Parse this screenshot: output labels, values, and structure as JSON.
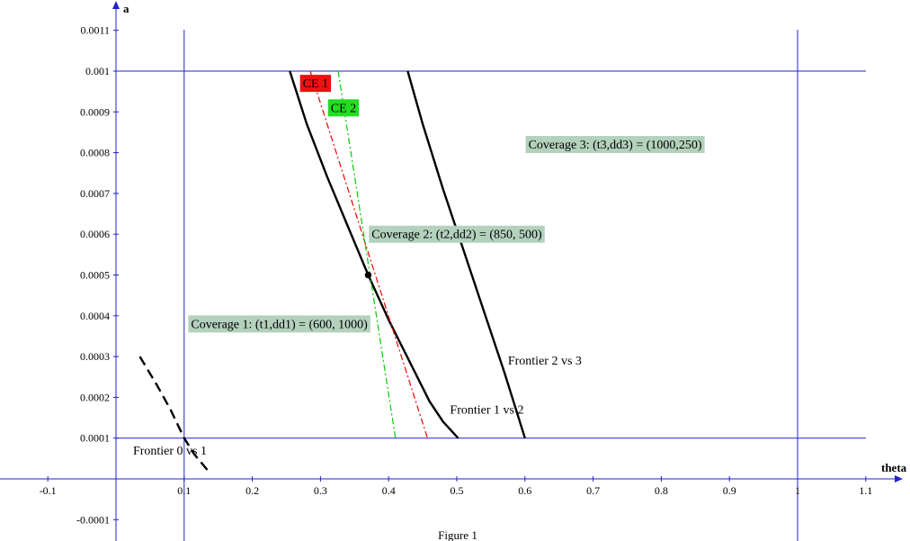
{
  "chart_data": {
    "type": "line",
    "title": "",
    "caption": "Figure 1",
    "xlabel": "theta",
    "ylabel": "a",
    "xlim": [
      -0.17,
      1.16
    ],
    "ylim": [
      -0.00015,
      0.00115
    ],
    "x_ticks": [
      {
        "value": -0.1,
        "label": "-0.1"
      },
      {
        "value": 0.1,
        "label": "0.1"
      },
      {
        "value": 0.2,
        "label": "0.2"
      },
      {
        "value": 0.3,
        "label": "0.3"
      },
      {
        "value": 0.4,
        "label": "0.4"
      },
      {
        "value": 0.5,
        "label": "0.5"
      },
      {
        "value": 0.6,
        "label": "0.6"
      },
      {
        "value": 0.7,
        "label": "0.7"
      },
      {
        "value": 0.8,
        "label": "0.8"
      },
      {
        "value": 0.9,
        "label": "0.9"
      },
      {
        "value": 1,
        "label": "1"
      },
      {
        "value": 1.1,
        "label": "1.1"
      }
    ],
    "y_ticks": [
      {
        "value": -0.0001,
        "label": "-0.0001"
      },
      {
        "value": 0.0001,
        "label": "0.0001"
      },
      {
        "value": 0.0002,
        "label": "0.0002"
      },
      {
        "value": 0.0003,
        "label": "0.0003"
      },
      {
        "value": 0.0004,
        "label": "0.0004"
      },
      {
        "value": 0.0005,
        "label": "0.0005"
      },
      {
        "value": 0.0006,
        "label": "0.0006"
      },
      {
        "value": 0.0007,
        "label": "0.0007"
      },
      {
        "value": 0.0008,
        "label": "0.0008"
      },
      {
        "value": 0.0009,
        "label": "0.0009"
      },
      {
        "value": 0.001,
        "label": "0.001"
      },
      {
        "value": 0.0011,
        "label": "0.0011"
      }
    ],
    "reference_lines": {
      "vertical_x": [
        0.1,
        1.0
      ],
      "horizontal_y": [
        0.0001,
        0.001
      ],
      "color": "#2222cc"
    },
    "series": [
      {
        "name": "Frontier 0 vs 1",
        "color": "#000000",
        "style": "dashed",
        "x": [
          0.035,
          0.06,
          0.08,
          0.1,
          0.115,
          0.135
        ],
        "y": [
          0.0003,
          0.00023,
          0.00017,
          0.0001,
          6e-05,
          2e-05
        ]
      },
      {
        "name": "Frontier 1 vs 2",
        "color": "#000000",
        "style": "solid",
        "x": [
          0.255,
          0.28,
          0.31,
          0.34,
          0.37,
          0.4,
          0.43,
          0.46,
          0.48,
          0.502
        ],
        "y": [
          0.001,
          0.00087,
          0.00074,
          0.00062,
          0.0005,
          0.00039,
          0.00029,
          0.00019,
          0.00014,
          0.0001
        ]
      },
      {
        "name": "Frontier 2 vs 3",
        "color": "#000000",
        "style": "solid",
        "x": [
          0.428,
          0.45,
          0.48,
          0.51,
          0.54,
          0.57,
          0.6
        ],
        "y": [
          0.001,
          0.00087,
          0.00071,
          0.00056,
          0.00041,
          0.00026,
          0.0001
        ]
      },
      {
        "name": "CE 1",
        "color": "#ee0000",
        "style": "dashdot",
        "x": [
          0.285,
          0.457
        ],
        "y": [
          0.001,
          0.0001
        ]
      },
      {
        "name": "CE 2",
        "color": "#00cc00",
        "style": "dashdot",
        "x": [
          0.326,
          0.41
        ],
        "y": [
          0.001,
          0.0001
        ]
      }
    ],
    "points": [
      {
        "x": 0.37,
        "y": 0.0005,
        "color": "#000000"
      }
    ],
    "annotations": [
      {
        "text": "Coverage 1: (t1,dd1) = (600, 1000)",
        "x": 0.11,
        "y": 0.00037,
        "box": "#b3d1bc"
      },
      {
        "text": "Coverage 2: (t2,dd2) = (850, 500)",
        "x": 0.375,
        "y": 0.00059,
        "box": "#b3d1bc"
      },
      {
        "text": "Coverage 3: (t3,dd3) = (1000,250)",
        "x": 0.605,
        "y": 0.00081,
        "box": "#b3d1bc"
      },
      {
        "text": "CE 1",
        "x": 0.274,
        "y": 0.00096,
        "box": "#ee1111"
      },
      {
        "text": "CE 2",
        "x": 0.315,
        "y": 0.0009,
        "box": "#22dd22"
      },
      {
        "text": "Frontier 0 vs 1",
        "x": 0.025,
        "y": 6e-05,
        "box": ""
      },
      {
        "text": "Frontier 1 vs 2",
        "x": 0.49,
        "y": 0.00016,
        "box": ""
      },
      {
        "text": "Frontier 2 vs 3",
        "x": 0.575,
        "y": 0.00028,
        "box": ""
      }
    ]
  }
}
